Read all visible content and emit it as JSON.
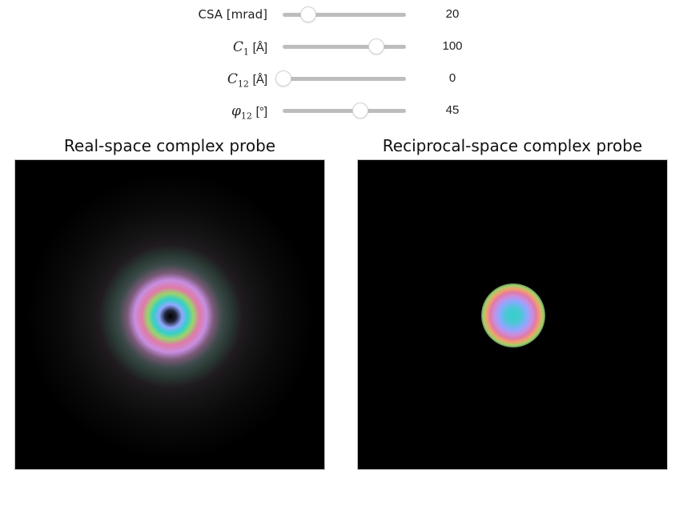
{
  "controls": [
    {
      "label_text": "CSA [mrad]",
      "symbol": "",
      "sub": "",
      "unit": "",
      "value": "20",
      "fraction": 0.2
    },
    {
      "label_text": "",
      "symbol": "C",
      "sub": "1",
      "unit": "[Å]",
      "value": "100",
      "fraction": 0.75
    },
    {
      "label_text": "",
      "symbol": "C",
      "sub": "12",
      "unit": "[Å]",
      "value": "0",
      "fraction": 0.0
    },
    {
      "label_text": "",
      "symbol": "φ",
      "sub": "12",
      "unit": "[°]",
      "value": "45",
      "fraction": 0.625
    }
  ],
  "panels": {
    "real": {
      "title": "Real-space complex probe"
    },
    "reciprocal": {
      "title": "Reciprocal-space complex probe"
    }
  },
  "colors": {
    "slider_track": "#bdbdbd",
    "slider_thumb": "#ffffff",
    "panel_background": "#000000",
    "ring_center": "#000000",
    "ring_cyan": "#33d0c8",
    "ring_blue": "#8fa8ff",
    "ring_magenta": "#c88ee0",
    "ring_green": "#9bd36b",
    "ring_orange": "#f0a36a",
    "ring_pink": "#e07aa6"
  }
}
